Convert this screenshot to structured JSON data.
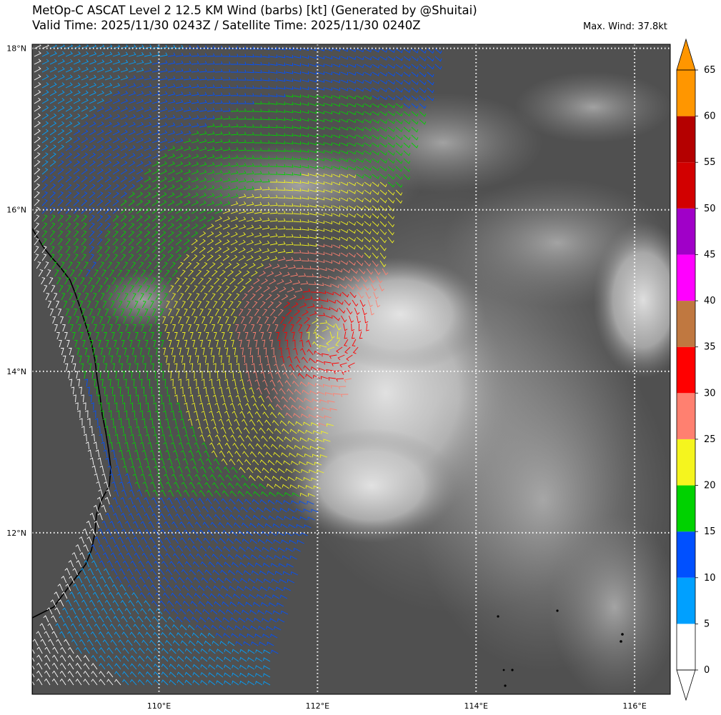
{
  "header": {
    "title_line1": "MetOp-C ASCAT Level 2 12.5 KM Wind (barbs) [kt] (Generated by @Shuitai)",
    "title_line2": "Valid Time: 2025/11/30 0243Z / Satellite Time: 2025/11/30 0240Z",
    "max_wind": "Max. Wind: 37.8kt"
  },
  "map": {
    "lat_labels": [
      "18°N",
      "16°N",
      "14°N",
      "12°N"
    ],
    "lon_labels": [
      "110°E",
      "112°E",
      "114°E",
      "116°E"
    ],
    "lat_range": [
      10.0,
      18.05
    ],
    "lon_range": [
      108.4,
      116.45
    ],
    "storm_center": {
      "lat": 14.45,
      "lon": 112.1
    },
    "background": "infrared satellite imagery (grayscale)",
    "gridlines": "dotted white"
  },
  "colorbar": {
    "tick_labels": [
      "0",
      "5",
      "10",
      "15",
      "20",
      "25",
      "30",
      "35",
      "40",
      "45",
      "50",
      "55",
      "60",
      "65"
    ],
    "extend": "both",
    "levels": [
      {
        "from": 0,
        "to": 5,
        "color": "#ffffff"
      },
      {
        "from": 5,
        "to": 10,
        "color": "#00a0ff"
      },
      {
        "from": 10,
        "to": 15,
        "color": "#0050ff"
      },
      {
        "from": 15,
        "to": 20,
        "color": "#00d200"
      },
      {
        "from": 20,
        "to": 25,
        "color": "#f5f51e"
      },
      {
        "from": 25,
        "to": 30,
        "color": "#ff8070"
      },
      {
        "from": 30,
        "to": 35,
        "color": "#ff0000"
      },
      {
        "from": 35,
        "to": 40,
        "color": "#c07840"
      },
      {
        "from": 40,
        "to": 45,
        "color": "#ff00ff"
      },
      {
        "from": 45,
        "to": 50,
        "color": "#a000c8"
      },
      {
        "from": 50,
        "to": 55,
        "color": "#d20000"
      },
      {
        "from": 55,
        "to": 60,
        "color": "#b40000"
      },
      {
        "from": 60,
        "to": 65,
        "color": "#ff9600"
      }
    ],
    "under_color": "#ffffff",
    "over_color": "#ff9600"
  }
}
